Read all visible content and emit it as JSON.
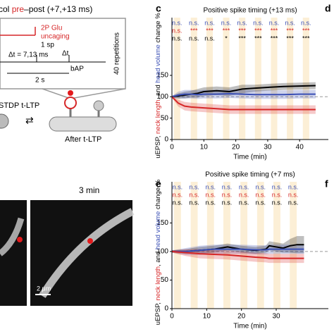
{
  "panel_letters": [
    "c",
    "d",
    "e",
    "f"
  ],
  "protocol": {
    "title_prefix": "col ",
    "title_pre": "pre",
    "title_rest": "–post (+7,+13 ms)",
    "uncaging_label": [
      "2P Glu",
      "uncaging"
    ],
    "spike_label": "1 sp",
    "delta_t_label": "Δt = 7,13 ms",
    "delta_t": "Δt",
    "period": "2 s",
    "bap": "bAP",
    "repetitions": "40 repetitions",
    "before": "STDP t-LTP",
    "after": "After t-LTP"
  },
  "images": {
    "time_label": "3 min",
    "scale_bar": "2 μm"
  },
  "chart_data": [
    {
      "type": "line",
      "title": "Positive spike timing (+13 ms)",
      "xlabel": "Time (min)",
      "ylabel_parts": [
        {
          "text": "uEPSP, ",
          "color": "#000000"
        },
        {
          "text": "neck length",
          "color": "#d62728"
        },
        {
          "text": ", and ",
          "color": "#000000"
        },
        {
          "text": "head volume",
          "color": "#3a4fb5"
        },
        {
          "text": " change %",
          "color": "#000000"
        }
      ],
      "xlim": [
        0,
        49
      ],
      "ylim": [
        0,
        285
      ],
      "xticks": [
        0,
        10,
        20,
        30,
        40
      ],
      "yticks": [
        0,
        50,
        100,
        150
      ],
      "reference_line": 100,
      "column_color": "#fcefd6",
      "column_width": 2,
      "label_colors": [
        "#3a4fb5",
        "#d62728",
        "#000000"
      ],
      "columns": [
        {
          "x": 1.6,
          "labels": [
            "n.s.",
            "n.s.",
            "n.s."
          ]
        },
        {
          "x": 6.9,
          "labels": [
            "n.s.",
            "***",
            "n.s."
          ]
        },
        {
          "x": 11.8,
          "labels": [
            "n.s.",
            "***",
            "n.s."
          ]
        },
        {
          "x": 17,
          "labels": [
            "n.s.",
            "***",
            "*"
          ]
        },
        {
          "x": 22,
          "labels": [
            "n.s.",
            "***",
            "***"
          ]
        },
        {
          "x": 27,
          "labels": [
            "n.s.",
            "***",
            "***"
          ]
        },
        {
          "x": 32,
          "labels": [
            "n.s.",
            "***",
            "***"
          ]
        },
        {
          "x": 37,
          "labels": [
            "n.s.",
            "***",
            "***"
          ]
        },
        {
          "x": 42,
          "labels": [
            "n.s.",
            "***",
            "***"
          ]
        }
      ],
      "series": [
        {
          "color": "#000000",
          "x": [
            0,
            2,
            4,
            6,
            8,
            10,
            14,
            18,
            22,
            26,
            30,
            35,
            40,
            45
          ],
          "values": [
            100,
            102,
            104,
            106,
            108,
            112,
            114,
            112,
            118,
            120,
            122,
            124,
            125,
            126
          ],
          "errors": [
            2,
            6,
            8,
            8,
            10,
            10,
            10,
            10,
            10,
            8,
            8,
            8,
            8,
            8
          ]
        },
        {
          "color": "#3a4fb5",
          "x": [
            0,
            2,
            4,
            6,
            8,
            10,
            14,
            18,
            22,
            26,
            30,
            35,
            40,
            45
          ],
          "values": [
            100,
            104,
            106,
            106,
            105,
            106,
            106,
            107,
            106,
            105,
            105,
            105,
            106,
            106
          ],
          "errors": [
            2,
            8,
            10,
            10,
            10,
            10,
            10,
            10,
            10,
            10,
            10,
            10,
            10,
            10
          ]
        },
        {
          "color": "#d62728",
          "x": [
            0,
            2,
            4,
            6,
            8,
            10,
            14,
            18,
            22,
            26,
            30,
            35,
            40,
            45
          ],
          "values": [
            100,
            85,
            78,
            76,
            75,
            74,
            72,
            70,
            70,
            70,
            70,
            70,
            70,
            70
          ],
          "errors": [
            2,
            8,
            10,
            10,
            10,
            10,
            10,
            10,
            10,
            10,
            10,
            10,
            10,
            10
          ]
        }
      ]
    },
    {
      "type": "line",
      "title": "Positive spike timing (+7 ms)",
      "xlabel": "Time (min)",
      "ylabel_parts": [
        {
          "text": "uEPSP, ",
          "color": "#000000"
        },
        {
          "text": "neck length",
          "color": "#d62728"
        },
        {
          "text": ", and ",
          "color": "#000000"
        },
        {
          "text": "head volume",
          "color": "#3a4fb5"
        },
        {
          "text": " change %",
          "color": "#000000"
        }
      ],
      "xlim": [
        0,
        45
      ],
      "ylim": [
        0,
        222
      ],
      "xticks": [
        0,
        10,
        20,
        30
      ],
      "yticks": [
        0,
        50,
        100,
        150
      ],
      "reference_line": 100,
      "column_color": "#fcefd6",
      "column_width": 2,
      "label_colors": [
        "#3a4fb5",
        "#d62728",
        "#000000"
      ],
      "columns": [
        {
          "x": 1.6,
          "labels": [
            "n.s.",
            "n.s.",
            "n.s."
          ]
        },
        {
          "x": 6.4,
          "labels": [
            "n.s.",
            "n.s.",
            "n.s."
          ]
        },
        {
          "x": 11.1,
          "labels": [
            "n.s.",
            "n.s.",
            "n.s."
          ]
        },
        {
          "x": 15.8,
          "labels": [
            "n.s.",
            "n.s.",
            "n.s."
          ]
        },
        {
          "x": 20.7,
          "labels": [
            "n.s.",
            "n.s.",
            "n.s."
          ]
        },
        {
          "x": 25.5,
          "labels": [
            "n.s.",
            "n.s.",
            "n.s."
          ]
        },
        {
          "x": 30.2,
          "labels": [
            "n.s.",
            "n.s.",
            "n.s."
          ]
        },
        {
          "x": 34.9,
          "labels": [
            "n.s.",
            "n.s.",
            "n.s."
          ]
        }
      ],
      "series": [
        {
          "color": "#000000",
          "x": [
            0,
            4,
            8,
            12,
            16,
            20,
            24,
            27,
            28,
            30,
            32,
            34,
            36,
            38
          ],
          "values": [
            100,
            100,
            102,
            104,
            108,
            104,
            102,
            104,
            110,
            108,
            106,
            110,
            112,
            112
          ],
          "errors": [
            2,
            4,
            6,
            6,
            6,
            6,
            6,
            6,
            8,
            8,
            8,
            12,
            15,
            15
          ]
        },
        {
          "color": "#3a4fb5",
          "x": [
            0,
            4,
            8,
            12,
            16,
            20,
            24,
            27,
            28,
            30,
            32,
            34,
            36,
            38
          ],
          "values": [
            100,
            100,
            102,
            104,
            104,
            104,
            103,
            103,
            104,
            104,
            104,
            104,
            104,
            104
          ],
          "errors": [
            2,
            6,
            8,
            8,
            8,
            8,
            8,
            8,
            8,
            8,
            8,
            8,
            8,
            8
          ]
        },
        {
          "color": "#d62728",
          "x": [
            0,
            4,
            8,
            12,
            16,
            20,
            24,
            27,
            28,
            30,
            32,
            34,
            36,
            38
          ],
          "values": [
            100,
            98,
            96,
            95,
            94,
            92,
            90,
            89,
            88,
            88,
            88,
            88,
            88,
            88
          ],
          "errors": [
            2,
            6,
            8,
            8,
            8,
            8,
            8,
            8,
            8,
            8,
            8,
            8,
            8,
            8
          ]
        }
      ]
    }
  ]
}
